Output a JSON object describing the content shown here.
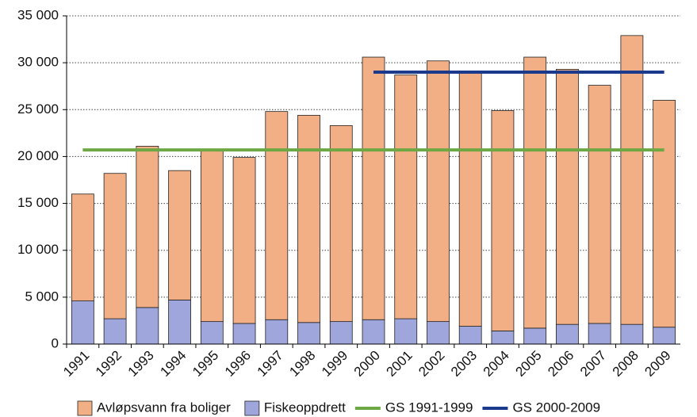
{
  "chart_data": {
    "type": "bar",
    "categories": [
      "1991",
      "1992",
      "1993",
      "1994",
      "1995",
      "1996",
      "1997",
      "1998",
      "1999",
      "2000",
      "2001",
      "2002",
      "2003",
      "2004",
      "2005",
      "2006",
      "2007",
      "2008",
      "2009"
    ],
    "series": [
      {
        "name": "Avløpsvann fra boliger",
        "kind": "bar",
        "color": "#f2ae84",
        "values": [
          11400,
          15500,
          17200,
          13800,
          18400,
          17700,
          22200,
          22100,
          20900,
          28000,
          26000,
          27800,
          27100,
          23500,
          28900,
          27200,
          25400,
          30800,
          24200
        ]
      },
      {
        "name": "Fiskeoppdrett",
        "kind": "bar",
        "color": "#9ea6dc",
        "values": [
          4600,
          2700,
          3900,
          4700,
          2400,
          2200,
          2600,
          2300,
          2400,
          2600,
          2700,
          2400,
          1900,
          1400,
          1700,
          2100,
          2200,
          2100,
          1800
        ]
      },
      {
        "name": "GS 1991-1999",
        "kind": "line",
        "color": "#6da844",
        "values": [
          20700,
          20700,
          20700,
          20700,
          20700,
          20700,
          20700,
          20700,
          20700,
          20700,
          20700,
          20700,
          20700,
          20700,
          20700,
          20700,
          20700,
          20700,
          20700
        ]
      },
      {
        "name": "GS 2000-2009",
        "kind": "line",
        "color": "#1c3a8c",
        "values": [
          null,
          null,
          null,
          null,
          null,
          null,
          null,
          null,
          null,
          29000,
          29000,
          29000,
          29000,
          29000,
          29000,
          29000,
          29000,
          29000,
          29000
        ]
      }
    ],
    "stacked": true,
    "ylim": [
      0,
      35000
    ],
    "yticks": [
      0,
      {
        "value": 5000,
        "label": "5 000"
      },
      {
        "value": 10000,
        "label": "10 000"
      },
      {
        "value": 15000,
        "label": "15 000"
      },
      {
        "value": 20000,
        "label": "20 000"
      },
      {
        "value": 25000,
        "label": "25 000"
      },
      {
        "value": 30000,
        "label": "30 000"
      },
      {
        "value": 35000,
        "label": "35 000"
      }
    ],
    "grid": true
  }
}
